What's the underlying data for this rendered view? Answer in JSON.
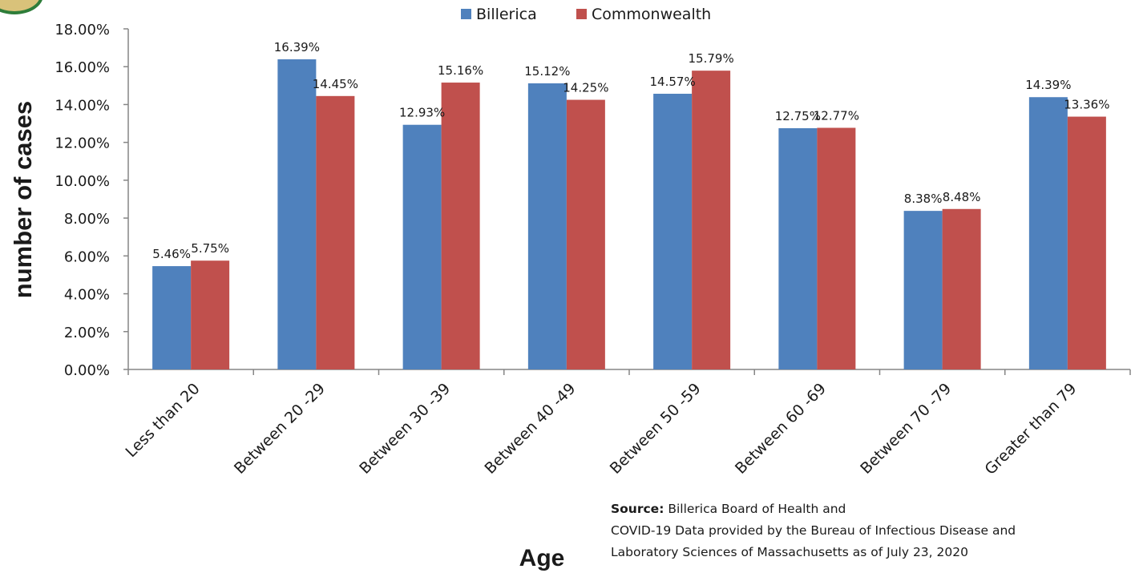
{
  "chart_data": {
    "type": "bar",
    "ylabel": "number of cases",
    "xlabel": "Age",
    "ylim": [
      0,
      18
    ],
    "yticks": [
      "0.00%",
      "2.00%",
      "4.00%",
      "6.00%",
      "8.00%",
      "10.00%",
      "12.00%",
      "14.00%",
      "16.00%",
      "18.00%"
    ],
    "categories": [
      "Less than 20",
      "Between 20 -29",
      "Between 30 -39",
      "Between 40 -49",
      "Between 50 -59",
      "Between 60 -69",
      "Between 70 -79",
      "Greater than 79"
    ],
    "series": [
      {
        "name": "Billerica",
        "color": "#4f81bd",
        "values": [
          5.46,
          16.39,
          12.93,
          15.12,
          14.57,
          12.75,
          8.38,
          14.39
        ],
        "labels": [
          "5.46%",
          "16.39%",
          "12.93%",
          "15.12%",
          "14.57%",
          "12.75%",
          "8.38%",
          "14.39%"
        ]
      },
      {
        "name": "Commonwealth",
        "color": "#c0504d",
        "values": [
          5.75,
          14.45,
          15.16,
          14.25,
          15.79,
          12.77,
          8.48,
          13.36
        ],
        "labels": [
          "5.75%",
          "14.45%",
          "15.16%",
          "14.25%",
          "15.79%",
          "12.77%",
          "8.48%",
          "13.36%"
        ]
      }
    ],
    "legend": "top-center",
    "grid": false
  },
  "source": {
    "label": "Source:",
    "line1": " Billerica Board of Health and",
    "line2": "COVID-19 Data provided by the Bureau of Infectious Disease and",
    "line3": "Laboratory Sciences  of Massachusetts as of July 23, 2020"
  }
}
